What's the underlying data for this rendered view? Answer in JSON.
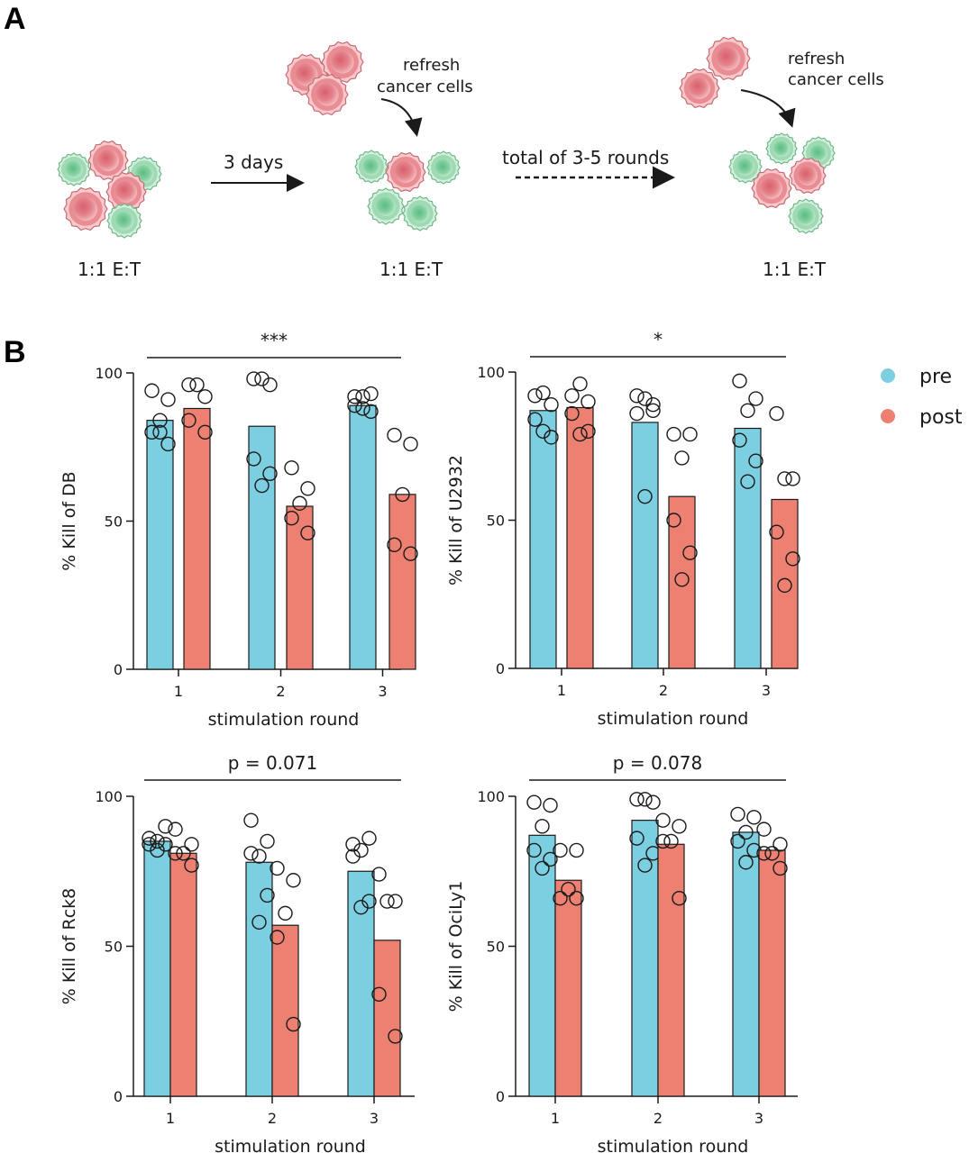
{
  "panel_labels": {
    "a": "A",
    "b": "B"
  },
  "schematic": {
    "refresh_1": [
      "refresh",
      "cancer cells"
    ],
    "refresh_2": [
      "refresh",
      "cancer cells"
    ],
    "arrow_1_label": "3 days",
    "arrow_2_label": "total of 3-5 rounds",
    "ratio_labels": [
      "1:1 E:T",
      "1:1 E:T",
      "1:1 E:T"
    ]
  },
  "colors": {
    "pre": "#7ccfe0",
    "post": "#ee8072",
    "cancer_cell": "#e98c93",
    "t_cell": "#7fcf9d"
  },
  "legend": [
    {
      "label": "pre",
      "color": "#7ccfe0"
    },
    {
      "label": "post",
      "color": "#ee8072"
    }
  ],
  "chart_data": [
    {
      "type": "bar",
      "ylabel": "% Kill of DB",
      "xlabel": "stimulation round",
      "categories": [
        "1",
        "2",
        "3"
      ],
      "ylim": [
        0,
        100
      ],
      "yticks": [
        0,
        50,
        100
      ],
      "significance": "***",
      "series": [
        {
          "name": "pre",
          "values": [
            84,
            82,
            89
          ],
          "points": [
            [
              94,
              91,
              84,
              80,
              76,
              80
            ],
            [
              98,
              96,
              98,
              71,
              66,
              62
            ],
            [
              92,
              93,
              92,
              89,
              87,
              88
            ]
          ]
        },
        {
          "name": "post",
          "values": [
            88,
            55,
            59
          ],
          "points": [
            [
              96,
              92,
              96,
              84,
              80
            ],
            [
              68,
              61,
              56,
              51,
              46
            ],
            [
              79,
              76,
              59,
              42,
              39
            ]
          ]
        }
      ]
    },
    {
      "type": "bar",
      "ylabel": "% Kill of U2932",
      "xlabel": "stimulation round",
      "categories": [
        "1",
        "2",
        "3"
      ],
      "ylim": [
        0,
        100
      ],
      "yticks": [
        0,
        50,
        100
      ],
      "significance": "*",
      "series": [
        {
          "name": "pre",
          "values": [
            87,
            83,
            81
          ],
          "points": [
            [
              92,
              89,
              93,
              84,
              78,
              80
            ],
            [
              92,
              89,
              91,
              86,
              87,
              58
            ],
            [
              97,
              91,
              87,
              77,
              70,
              63
            ]
          ]
        },
        {
          "name": "post",
          "values": [
            88,
            58,
            57
          ],
          "points": [
            [
              92,
              90,
              96,
              86,
              80,
              79
            ],
            [
              79,
              79,
              71,
              50,
              39,
              30
            ],
            [
              86,
              64,
              64,
              46,
              37,
              28
            ]
          ]
        }
      ]
    },
    {
      "type": "bar",
      "ylabel": "% Kill of Rck8",
      "xlabel": "stimulation round",
      "categories": [
        "1",
        "2",
        "3"
      ],
      "ylim": [
        0,
        100
      ],
      "yticks": [
        0,
        50,
        100
      ],
      "significance": "p = 0.071",
      "series": [
        {
          "name": "pre",
          "values": [
            85,
            78,
            75
          ],
          "points": [
            [
              86,
              90,
              85,
              84,
              84,
              82
            ],
            [
              92,
              85,
              80,
              81,
              67,
              58
            ],
            [
              84,
              86,
              82,
              80,
              65,
              63
            ]
          ]
        },
        {
          "name": "post",
          "values": [
            81,
            57,
            52
          ],
          "points": [
            [
              89,
              84,
              81,
              81,
              77
            ],
            [
              76,
              72,
              61,
              53,
              24
            ],
            [
              74,
              65,
              65,
              34,
              20
            ]
          ]
        }
      ]
    },
    {
      "type": "bar",
      "ylabel": "% Kill of OciLy1",
      "xlabel": "stimulation round",
      "categories": [
        "1",
        "2",
        "3"
      ],
      "ylim": [
        0,
        100
      ],
      "yticks": [
        0,
        50,
        100
      ],
      "significance": "p = 0.078",
      "series": [
        {
          "name": "pre",
          "values": [
            87,
            92,
            88
          ],
          "points": [
            [
              98,
              97,
              90,
              82,
              79,
              76
            ],
            [
              99,
              98,
              99,
              86,
              81,
              77
            ],
            [
              94,
              93,
              88,
              85,
              82,
              78
            ]
          ]
        },
        {
          "name": "post",
          "values": [
            72,
            84,
            82
          ],
          "points": [
            [
              82,
              82,
              69,
              66,
              66
            ],
            [
              92,
              90,
              85,
              85,
              66
            ],
            [
              89,
              84,
              81,
              81,
              76
            ]
          ]
        }
      ]
    }
  ]
}
